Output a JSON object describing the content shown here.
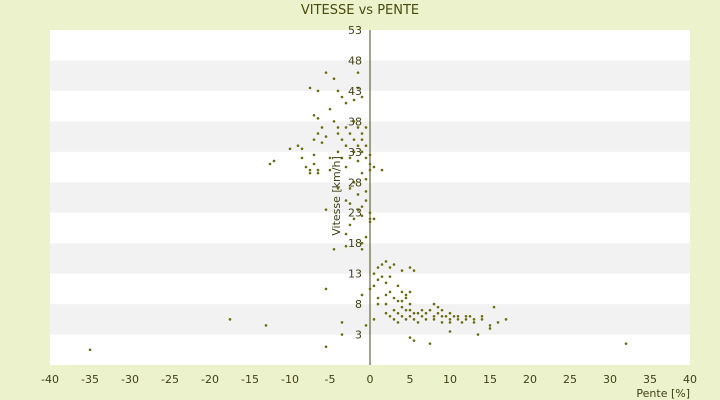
{
  "chart_data": {
    "type": "scatter",
    "title": "VITESSE vs PENTE",
    "xlabel": "Pente [%]",
    "ylabel": "Vitesse [km/h]",
    "xlim": [
      -40,
      40
    ],
    "ylim": [
      -2,
      53
    ],
    "x_ticks": [
      -40,
      -35,
      -30,
      -25,
      -20,
      -15,
      -10,
      -5,
      0,
      5,
      10,
      15,
      20,
      25,
      30,
      35,
      40
    ],
    "y_ticks": [
      3,
      8,
      13,
      18,
      23,
      28,
      33,
      38,
      43,
      48,
      53
    ],
    "grid": "alternating horizontal bands",
    "colors": {
      "background": "#ecf3cc",
      "plot_white": "#ffffff",
      "plot_band": "#f2f2f2",
      "point": "#6b6b10",
      "axis": "#4a4a10"
    },
    "points": [
      [
        -35,
        0.5
      ],
      [
        -17.5,
        5.5
      ],
      [
        -13,
        4.5
      ],
      [
        -5.5,
        1.0
      ],
      [
        -5.5,
        10.5
      ],
      [
        -3.5,
        5.0
      ],
      [
        -3.5,
        3.0
      ],
      [
        -12,
        31.5
      ],
      [
        -12.5,
        31.0
      ],
      [
        -10,
        33.5
      ],
      [
        -9,
        34
      ],
      [
        -8.5,
        33.5
      ],
      [
        -8.5,
        32
      ],
      [
        -8,
        30.5
      ],
      [
        -7.5,
        30
      ],
      [
        -7.5,
        29.5
      ],
      [
        -7,
        32.5
      ],
      [
        -7,
        31
      ],
      [
        -6.5,
        30
      ],
      [
        -6.5,
        29.5
      ],
      [
        -7.5,
        43.5
      ],
      [
        -6.5,
        43
      ],
      [
        -5.5,
        46
      ],
      [
        -4.5,
        45
      ],
      [
        -4,
        43
      ],
      [
        -3.5,
        42
      ],
      [
        -3,
        41
      ],
      [
        -2,
        41.5
      ],
      [
        -1.5,
        46
      ],
      [
        -1.5,
        43.5
      ],
      [
        -1,
        42
      ],
      [
        -7,
        39
      ],
      [
        -6.5,
        38.5
      ],
      [
        -6,
        37
      ],
      [
        -6.5,
        36
      ],
      [
        -7,
        35
      ],
      [
        -6,
        34.5
      ],
      [
        -5.5,
        35.5
      ],
      [
        -5,
        40
      ],
      [
        -4.5,
        38
      ],
      [
        -4,
        37
      ],
      [
        -4,
        36
      ],
      [
        -3.5,
        35
      ],
      [
        -3,
        37
      ],
      [
        -3,
        34
      ],
      [
        -2.5,
        36
      ],
      [
        -2,
        38
      ],
      [
        -2,
        35
      ],
      [
        -1.5,
        37
      ],
      [
        -1,
        36
      ],
      [
        -1,
        35
      ],
      [
        -0.5,
        37
      ],
      [
        -0.5,
        34
      ],
      [
        -1,
        33
      ],
      [
        -1.5,
        34
      ],
      [
        -2,
        33
      ],
      [
        -0.5,
        32
      ],
      [
        0,
        31
      ],
      [
        0,
        30
      ],
      [
        -2.5,
        32
      ],
      [
        -3,
        30.5
      ],
      [
        -3.5,
        32
      ],
      [
        -5,
        30
      ],
      [
        -1,
        29.5
      ],
      [
        -0.5,
        28.5
      ],
      [
        0.5,
        30.5
      ],
      [
        1.5,
        30
      ],
      [
        0,
        32.5
      ],
      [
        -1.5,
        31.5
      ],
      [
        -4,
        33
      ],
      [
        -5,
        32
      ],
      [
        -2,
        28
      ],
      [
        -2.5,
        27
      ],
      [
        -3,
        25
      ],
      [
        -2.5,
        24.5
      ],
      [
        -1.5,
        26
      ],
      [
        -1,
        24
      ],
      [
        -0.5,
        25
      ],
      [
        0,
        23
      ],
      [
        0,
        22
      ],
      [
        -1,
        22.5
      ],
      [
        -1.5,
        23.5
      ],
      [
        -2,
        22
      ],
      [
        -2.5,
        21
      ],
      [
        -3,
        19.5
      ],
      [
        -1,
        18
      ],
      [
        -1,
        17
      ],
      [
        -0.5,
        19
      ],
      [
        0,
        21.5
      ],
      [
        0.5,
        22
      ],
      [
        -3,
        17.5
      ],
      [
        -4.5,
        17
      ],
      [
        -5.5,
        23.5
      ],
      [
        -4,
        27
      ],
      [
        -0.5,
        26.5
      ],
      [
        0.5,
        13
      ],
      [
        1,
        14
      ],
      [
        1.5,
        14.5
      ],
      [
        2,
        15
      ],
      [
        2.5,
        14
      ],
      [
        2.5,
        12.5
      ],
      [
        3,
        14.5
      ],
      [
        4,
        13.5
      ],
      [
        5,
        14
      ],
      [
        5.5,
        13.5
      ],
      [
        1,
        12
      ],
      [
        1.5,
        12.5
      ],
      [
        2,
        11.5
      ],
      [
        0.5,
        11
      ],
      [
        0,
        10.5
      ],
      [
        -1,
        9.5
      ],
      [
        1,
        9
      ],
      [
        2,
        8
      ],
      [
        2.5,
        10
      ],
      [
        3,
        9
      ],
      [
        3.5,
        8.5
      ],
      [
        4,
        10
      ],
      [
        4.5,
        9.5
      ],
      [
        5,
        8
      ],
      [
        5,
        7
      ],
      [
        4,
        7.5
      ],
      [
        3.5,
        6.5
      ],
      [
        3,
        7
      ],
      [
        2.5,
        6
      ],
      [
        2,
        6.5
      ],
      [
        3,
        5.5
      ],
      [
        3.5,
        5
      ],
      [
        4,
        6
      ],
      [
        4.5,
        5.5
      ],
      [
        5,
        6
      ],
      [
        5.5,
        5.5
      ],
      [
        6,
        6.5
      ],
      [
        6,
        5
      ],
      [
        6.5,
        6
      ],
      [
        7,
        5.5
      ],
      [
        7.5,
        7
      ],
      [
        8,
        6
      ],
      [
        8,
        5.5
      ],
      [
        8.5,
        6.5
      ],
      [
        9,
        6
      ],
      [
        9,
        5
      ],
      [
        9.5,
        6
      ],
      [
        10,
        5.5
      ],
      [
        10,
        5
      ],
      [
        10.5,
        6
      ],
      [
        11,
        5.5
      ],
      [
        11.5,
        5
      ],
      [
        12,
        5.5
      ],
      [
        12.5,
        6
      ],
      [
        13,
        5
      ],
      [
        14,
        5.5
      ],
      [
        15,
        4.5
      ],
      [
        15.5,
        7.5
      ],
      [
        16,
        5
      ],
      [
        17,
        5.5
      ],
      [
        14,
        6
      ],
      [
        13,
        5.5
      ],
      [
        11,
        6
      ],
      [
        12,
        6
      ],
      [
        10,
        6.5
      ],
      [
        9,
        7
      ],
      [
        8.5,
        7.5
      ],
      [
        8,
        8
      ],
      [
        7,
        6.5
      ],
      [
        6.5,
        7
      ],
      [
        5.5,
        6.5
      ],
      [
        4.5,
        7
      ],
      [
        4,
        8.5
      ],
      [
        5,
        10
      ],
      [
        3.5,
        11
      ],
      [
        4.5,
        9
      ],
      [
        5,
        2.5
      ],
      [
        5.5,
        2
      ],
      [
        7.5,
        1.5
      ],
      [
        10,
        3.5
      ],
      [
        13.5,
        3
      ],
      [
        15,
        4
      ],
      [
        32,
        1.5
      ],
      [
        -0.5,
        4.5
      ],
      [
        0.5,
        5.5
      ],
      [
        1,
        8
      ],
      [
        2,
        9.5
      ]
    ]
  }
}
